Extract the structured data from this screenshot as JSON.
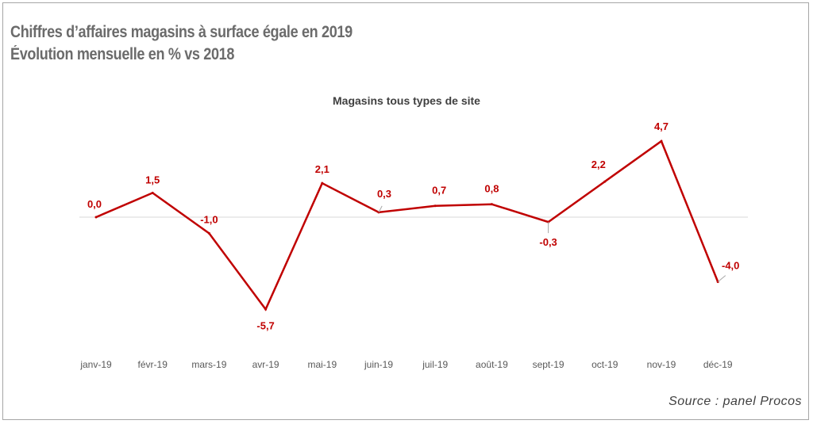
{
  "header": {
    "title_line1": "Chiffres d’affaires magasins à surface égale en 2019",
    "title_line2": "Évolution mensuelle en % vs 2018"
  },
  "footer": {
    "source": "Source : panel Procos"
  },
  "colors": {
    "series": "#c00000",
    "title": "#6b6b6b",
    "axis": "#d9d9d9"
  },
  "chart_data": {
    "type": "line",
    "title": "Magasins tous types de site",
    "xlabel": "",
    "ylabel": "",
    "grid": false,
    "legend": "none",
    "ylim": [
      -7,
      6
    ],
    "categories": [
      "janv-19",
      "févr-19",
      "mars-19",
      "avr-19",
      "mai-19",
      "juin-19",
      "juil-19",
      "août-19",
      "sept-19",
      "oct-19",
      "nov-19",
      "déc-19"
    ],
    "series": [
      {
        "values": [
          0.0,
          1.5,
          -1.0,
          -5.7,
          2.1,
          0.3,
          0.7,
          0.8,
          -0.3,
          2.2,
          4.7,
          -4.0
        ],
        "labels": [
          "0,0",
          "1,5",
          "-1,0",
          "-5,7",
          "2,1",
          "0,3",
          "0,7",
          "0,8",
          "-0,3",
          "2,2",
          "4,7",
          "-4,0"
        ]
      }
    ]
  }
}
